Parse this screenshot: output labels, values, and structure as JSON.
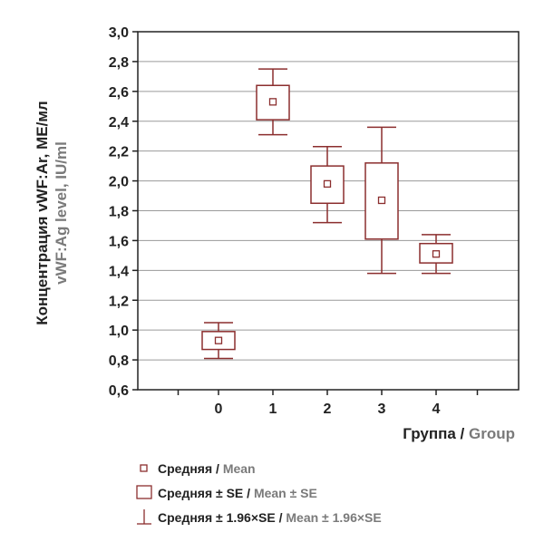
{
  "chart_data": {
    "type": "box",
    "categories": [
      "0",
      "1",
      "2",
      "3",
      "4"
    ],
    "series": [
      {
        "mean": [
          0.93,
          2.53,
          1.98,
          1.87,
          1.51
        ],
        "se_low": [
          0.87,
          2.41,
          1.85,
          1.61,
          1.45
        ],
        "se_high": [
          0.99,
          2.64,
          2.1,
          2.12,
          1.58
        ],
        "ci_low": [
          0.81,
          2.31,
          1.72,
          1.38,
          1.38
        ],
        "ci_high": [
          1.05,
          2.75,
          2.23,
          2.36,
          1.64
        ]
      }
    ],
    "yticks": [
      "0,6",
      "0,8",
      "1,0",
      "1,2",
      "1,4",
      "1,6",
      "1,8",
      "2,0",
      "2,2",
      "2,4",
      "2,6",
      "2,8",
      "3,0"
    ],
    "ylim": [
      0.6,
      3.0
    ],
    "grid": true,
    "ylabel_ru": "Концентрация vWF:Ar, МЕ/мл",
    "ylabel_en": "vWF:Ag level, IU/ml",
    "xlabel_ru": "Группа / ",
    "xlabel_en": "Group",
    "legend": [
      {
        "symbol": "mean-marker",
        "ru": "Средняя / ",
        "en": "Mean"
      },
      {
        "symbol": "se-box",
        "ru": "Средняя ± SE / ",
        "en": "Mean ± SE"
      },
      {
        "symbol": "ci-whisker",
        "ru": "Средняя ± 1.96×SE / ",
        "en": "Mean ± 1.96×SE"
      }
    ],
    "legend_position": "bottom-left",
    "colors": {
      "series": "#8b2e2e",
      "axis": "#222222",
      "grid": "#9a9a9a"
    }
  }
}
